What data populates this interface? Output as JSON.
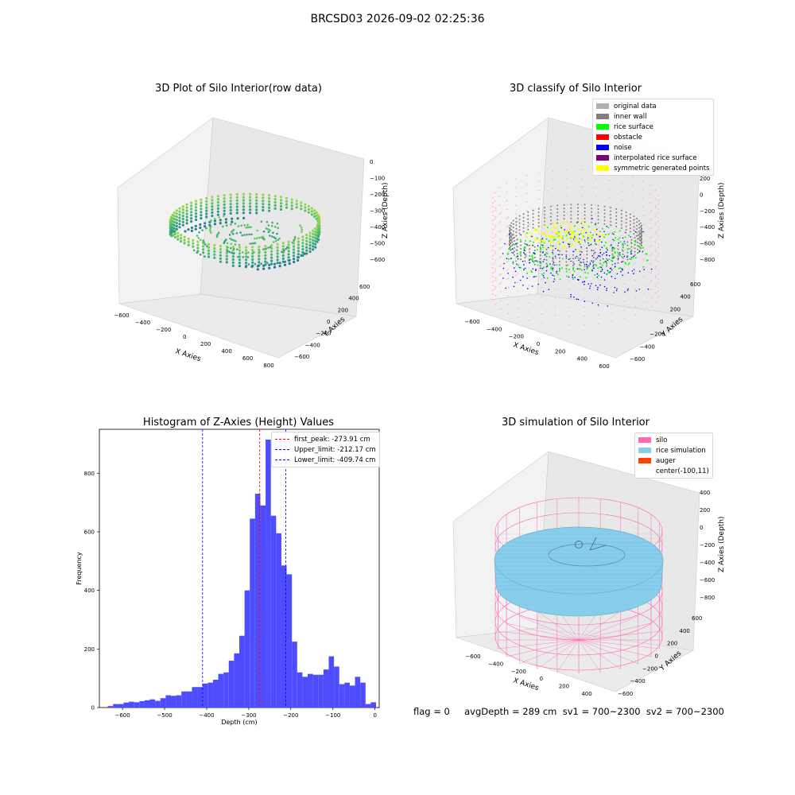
{
  "figure_title": "BRCSD03 2026-09-02 02:25:36",
  "footer_text": "flag = 0     avgDepth = 289 cm  sv1 = 700~2300  sv2 = 700~2300",
  "colors": {
    "silo": "#ff69b4",
    "rice_simulation": "#87ceeb",
    "auger": "#ff4500",
    "original": "#b0b0b0",
    "inner_wall": "#808080",
    "rice_surface": "#00ff00",
    "obstacle": "#ff0000",
    "noise": "#0000ff",
    "interpolated": "#800080",
    "symmetric": "#ffff00",
    "histogram": "#4d4dff"
  },
  "chart_data": [
    {
      "type": "scatter3d",
      "title": "3D Plot of Silo Interior(row data)",
      "xlabel": "X Axies",
      "ylabel": "Y Axies",
      "zlabel": "Z Axies (Depth)",
      "xticks": [
        "−600",
        "−400",
        "−200",
        "0",
        "200",
        "400",
        "600",
        "800"
      ],
      "yticks": [
        "600",
        "400",
        "200",
        "0",
        "−200",
        "−400",
        "−600"
      ],
      "zticks": [
        "0",
        "−100",
        "−200",
        "−300",
        "−400",
        "−500",
        "−600"
      ],
      "colormap": "viridis",
      "center": [
        -100,
        11
      ],
      "silo_radius": 700,
      "zlim": [
        -650,
        0
      ]
    },
    {
      "type": "scatter3d",
      "title": "3D classify of Silo Interior",
      "xlabel": "X Axies",
      "ylabel": "Y Axies",
      "zlabel": "Z Axies (Depth)",
      "xticks": [
        "−600",
        "−400",
        "−200",
        "0",
        "200",
        "400",
        "600"
      ],
      "yticks": [
        "600",
        "400",
        "200",
        "0",
        "−200",
        "−400",
        "−600"
      ],
      "zticks": [
        "200",
        "0",
        "−200",
        "−400",
        "−600",
        "−800"
      ],
      "legend": [
        "original data",
        "inner wall",
        "rice surface",
        "obstacle",
        "noise",
        "interpolated rice surface",
        "symmetric generated points"
      ],
      "zlim": [
        -900,
        250
      ]
    },
    {
      "type": "bar",
      "title": "Histogram of Z-Axies (Height) Values",
      "xlabel": "Depth (cm)",
      "ylabel": "Frequency",
      "xlim": [
        -655,
        10
      ],
      "ylim": [
        0,
        950
      ],
      "xticks": [
        -600,
        -500,
        -400,
        -300,
        -200,
        -100,
        0
      ],
      "xtick_labels": [
        "−600",
        "−500",
        "−400",
        "−300",
        "−200",
        "−100",
        "0"
      ],
      "yticks": [
        0,
        200,
        400,
        600,
        800
      ],
      "yticks_labels": [
        "0",
        "200",
        "400",
        "600",
        "800"
      ],
      "bin_width": 12.5,
      "bin_start": -635,
      "values": [
        5,
        12,
        12,
        17,
        20,
        18,
        22,
        25,
        28,
        23,
        32,
        42,
        40,
        42,
        55,
        55,
        70,
        70,
        82,
        85,
        95,
        115,
        120,
        160,
        185,
        245,
        400,
        645,
        730,
        690,
        915,
        655,
        595,
        485,
        455,
        225,
        120,
        105,
        115,
        112,
        112,
        130,
        175,
        140,
        80,
        85,
        75,
        105,
        85,
        12,
        18
      ],
      "lines": [
        {
          "label": "first_peak: -273.91 cm",
          "x": -273.91,
          "color": "#ff0000"
        },
        {
          "label": "Upper_limit: -212.17 cm",
          "x": -212.17,
          "color": "#0000ff"
        },
        {
          "label": "Lower_limit: -409.74 cm",
          "x": -409.74,
          "color": "#0000ff"
        }
      ]
    },
    {
      "type": "surface3d",
      "title": "3D simulation of Silo Interior",
      "xlabel": "X Axies",
      "ylabel": "Y Axies",
      "zlabel": "Z Axies (Depth)",
      "xticks": [
        "−600",
        "−400",
        "−200",
        "0",
        "200",
        "400"
      ],
      "yticks": [
        "600",
        "400",
        "200",
        "0",
        "−200",
        "−400",
        "−600"
      ],
      "zticks": [
        "400",
        "200",
        "0",
        "−200",
        "−400",
        "−600",
        "−800"
      ],
      "legend": [
        "silo",
        "rice simulation",
        "auger",
        "center(-100,11)"
      ],
      "avg_depth": 289
    }
  ]
}
